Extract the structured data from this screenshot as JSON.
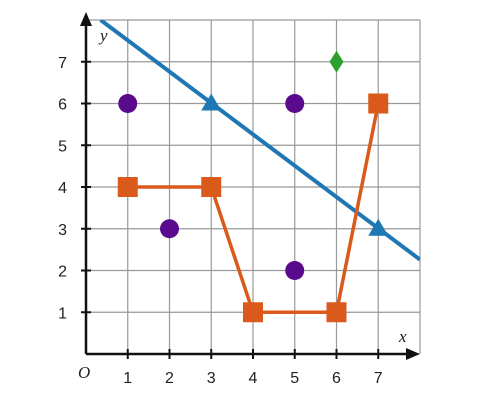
{
  "chart_data": {
    "type": "scatter",
    "title": "",
    "xlabel": "x",
    "ylabel": "y",
    "origin_label": "O",
    "xlim": [
      0,
      8
    ],
    "ylim": [
      0,
      8
    ],
    "xticks": [
      1,
      2,
      3,
      4,
      5,
      6,
      7
    ],
    "yticks": [
      1,
      2,
      3,
      4,
      5,
      6,
      7
    ],
    "grid": true,
    "colors": {
      "grid": "#999999",
      "axis": "#111111",
      "line": "#1f77b4",
      "orange": "#d95a1a",
      "purple": "#5a0a8c",
      "green": "#2ca02c"
    },
    "series": [
      {
        "kind": "line",
        "marker": "none",
        "color": "#1f77b4",
        "x": [
          0.35,
          8.0
        ],
        "y": [
          8.0,
          2.26
        ]
      },
      {
        "kind": "scatter",
        "marker": "triangle",
        "color": "#1f77b4",
        "x": [
          3,
          7
        ],
        "y": [
          6,
          3
        ]
      },
      {
        "kind": "line",
        "marker": "square",
        "color": "#d95a1a",
        "x": [
          1,
          3,
          4,
          6,
          7
        ],
        "y": [
          4,
          4,
          1,
          1,
          6
        ]
      },
      {
        "kind": "scatter",
        "marker": "circle",
        "color": "#5a0a8c",
        "x": [
          1,
          2,
          5,
          5
        ],
        "y": [
          6,
          3,
          6,
          2
        ]
      },
      {
        "kind": "scatter",
        "marker": "diamond",
        "color": "#2ca02c",
        "x": [
          6
        ],
        "y": [
          7
        ]
      }
    ]
  }
}
